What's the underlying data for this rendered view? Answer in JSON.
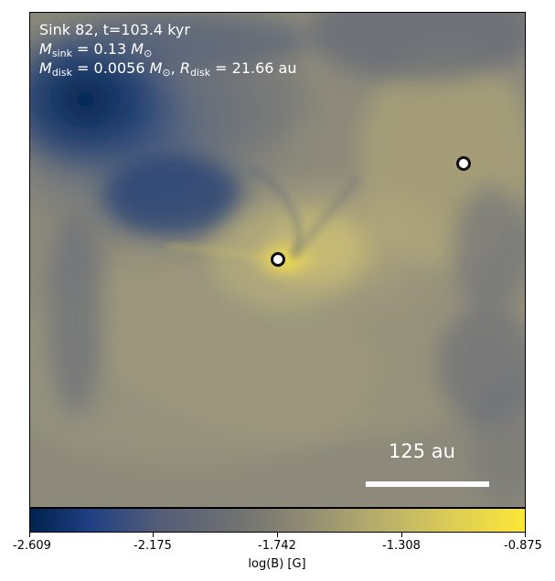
{
  "overlay": {
    "line1": "Sink 82, t=103.4 kyr",
    "line2_label": "M",
    "line2_sub": "sink",
    "line2_eq": " = 0.13 ",
    "line2_unit": "M",
    "line2_unit_sub": "⊙",
    "line3_label": "M",
    "line3_sub": "disk",
    "line3_eq": " = 0.0056 ",
    "line3_unit": "M",
    "line3_unit_sub": "⊙",
    "line3_sep": ", ",
    "line3_label2": "R",
    "line3_sub2": "disk",
    "line3_eq2": " = 21.66 au"
  },
  "scale_bar": {
    "text": "125 au"
  },
  "colorbar": {
    "ticks": [
      "-2.609",
      "-2.175",
      "-1.742",
      "-1.308",
      "-0.875"
    ],
    "label": "log(B) [G]"
  },
  "colors": {
    "dark_blue": "#00224e",
    "mid_gray": "#707171",
    "yellow": "#fde737"
  },
  "icons": {
    "sink_marker": "ringed-circle"
  }
}
